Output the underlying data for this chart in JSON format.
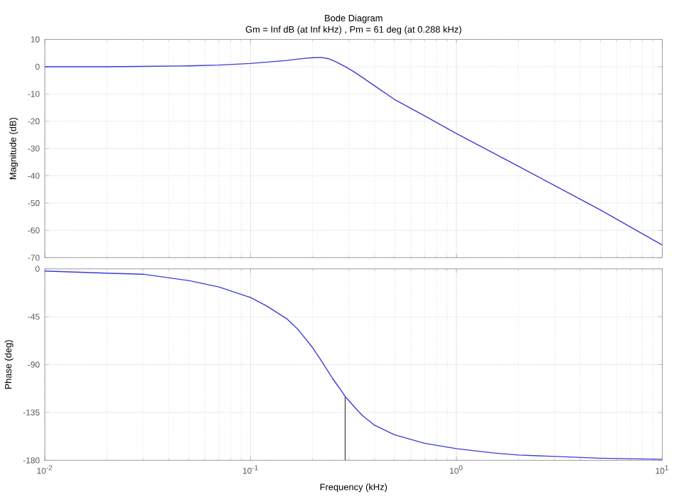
{
  "chart_data": [
    {
      "type": "line",
      "title": "Bode Diagram",
      "subtitle": "Gm = Inf dB (at Inf kHz) ,  Pm = 61 deg (at 0.288 kHz)",
      "ylabel": "Magnitude (dB)",
      "log": "x",
      "grid": true,
      "tick_labels": "y",
      "xlim": [
        0.01,
        10
      ],
      "xticks": [
        {
          "value": 0.01,
          "label": null
        },
        {
          "value": 0.1,
          "label": null
        },
        {
          "value": 1,
          "label": null
        },
        {
          "value": 10,
          "label": null
        }
      ],
      "ylim": [
        -70,
        10
      ],
      "yticks": [
        -70,
        -60,
        -50,
        -40,
        -30,
        -20,
        -10,
        0,
        10
      ],
      "series": [
        {
          "color": "#3b3bd6",
          "x": [
            0.01,
            0.02,
            0.03,
            0.05,
            0.07,
            0.1,
            0.15,
            0.18,
            0.2,
            0.22,
            0.24,
            0.26,
            0.288,
            0.32,
            0.4,
            0.5,
            0.7,
            1,
            2,
            5,
            10
          ],
          "values": [
            0,
            0,
            0.1,
            0.3,
            0.6,
            1.2,
            2.3,
            3,
            3.3,
            3.4,
            2.9,
            1.8,
            0,
            -2,
            -7,
            -12,
            -18,
            -24.5,
            -36.5,
            -52.5,
            -65.4
          ]
        }
      ]
    },
    {
      "type": "line",
      "xlabel": "Frequency  (kHz)",
      "ylabel": "Phase (deg)",
      "log": "x",
      "grid": true,
      "xlim": [
        0.01,
        10
      ],
      "xticks": [
        {
          "value": 0.01,
          "label": "10$^{-2}$"
        },
        {
          "value": 0.1,
          "label": "10$^{-1}$"
        },
        {
          "value": 1,
          "label": "10$^{0}$"
        },
        {
          "value": 10,
          "label": "10$^{1}$"
        }
      ],
      "ylim": [
        -180,
        0
      ],
      "yticks": [
        -180,
        -135,
        -90,
        -45,
        0
      ],
      "series": [
        {
          "color": "#3b3bd6",
          "x": [
            0.01,
            0.02,
            0.03,
            0.05,
            0.07,
            0.1,
            0.12,
            0.15,
            0.17,
            0.2,
            0.22,
            0.25,
            0.27,
            0.288,
            0.32,
            0.35,
            0.4,
            0.5,
            0.7,
            1,
            1.5,
            2,
            5,
            10
          ],
          "values": [
            -2,
            -4,
            -5,
            -11,
            -17,
            -27,
            -35,
            -47,
            -57,
            -74,
            -86,
            -103,
            -112,
            -120,
            -130,
            -138,
            -147,
            -156,
            -164,
            -169,
            -173,
            -175,
            -178,
            -179
          ]
        },
        {
          "color": "#505050",
          "x": [
            0.288,
            0.288
          ],
          "values": [
            -180,
            -120
          ]
        }
      ]
    }
  ]
}
